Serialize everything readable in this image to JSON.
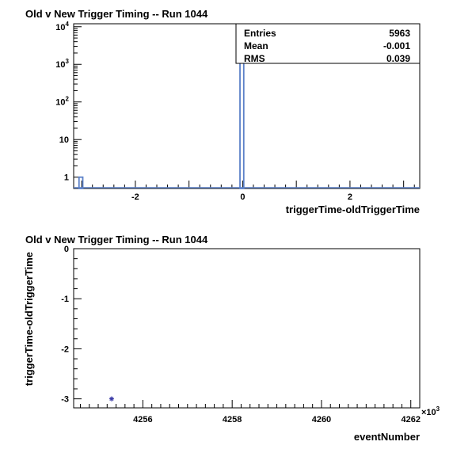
{
  "chart_data": [
    {
      "type": "bar",
      "title": "Old v New Trigger Timing -- Run 1044",
      "xlabel": "triggerTime-oldTriggerTime",
      "ylabel": "",
      "xlim": [
        -3.15,
        3.3
      ],
      "ylim": [
        0.5,
        12000
      ],
      "yscale": "log",
      "x_ticks": [
        "-2",
        "0",
        "2"
      ],
      "y_tick_labels": [
        {
          "value": 1,
          "base": "1",
          "exp": ""
        },
        {
          "value": 10,
          "base": "10",
          "exp": ""
        },
        {
          "value": 100,
          "base": "10",
          "exp": "2"
        },
        {
          "value": 1000,
          "base": "10",
          "exp": "3"
        },
        {
          "value": 10000,
          "base": "10",
          "exp": "4"
        }
      ],
      "bins": [
        {
          "x0": -3.05,
          "x1": -2.98,
          "value": 1
        },
        {
          "x0": -0.05,
          "x1": 0.02,
          "value": 5962
        }
      ],
      "stats": [
        {
          "label": "Entries",
          "value": "5963"
        },
        {
          "label": "Mean",
          "value": "-0.001"
        },
        {
          "label": "RMS",
          "value": "0.039"
        }
      ],
      "legend_position": "top-right",
      "colors": {
        "hist": "#5b80c8"
      }
    },
    {
      "type": "scatter",
      "title": "Old v New Trigger Timing -- Run 1044",
      "xlabel": "eventNumber",
      "ylabel": "triggerTime-oldTriggerTime",
      "x_multiplier": "×10",
      "x_multiplier_exp": "3",
      "xlim": [
        4254.45,
        4262.2
      ],
      "ylim": [
        -3.18,
        0
      ],
      "x_ticks": [
        "4256",
        "4258",
        "4260",
        "4262"
      ],
      "y_ticks": [
        "0",
        "-1",
        "-2",
        "-3"
      ],
      "points": [
        {
          "x": 4255.3,
          "y": -3
        }
      ],
      "colors": {
        "marker": "#3a3aa6"
      }
    }
  ]
}
